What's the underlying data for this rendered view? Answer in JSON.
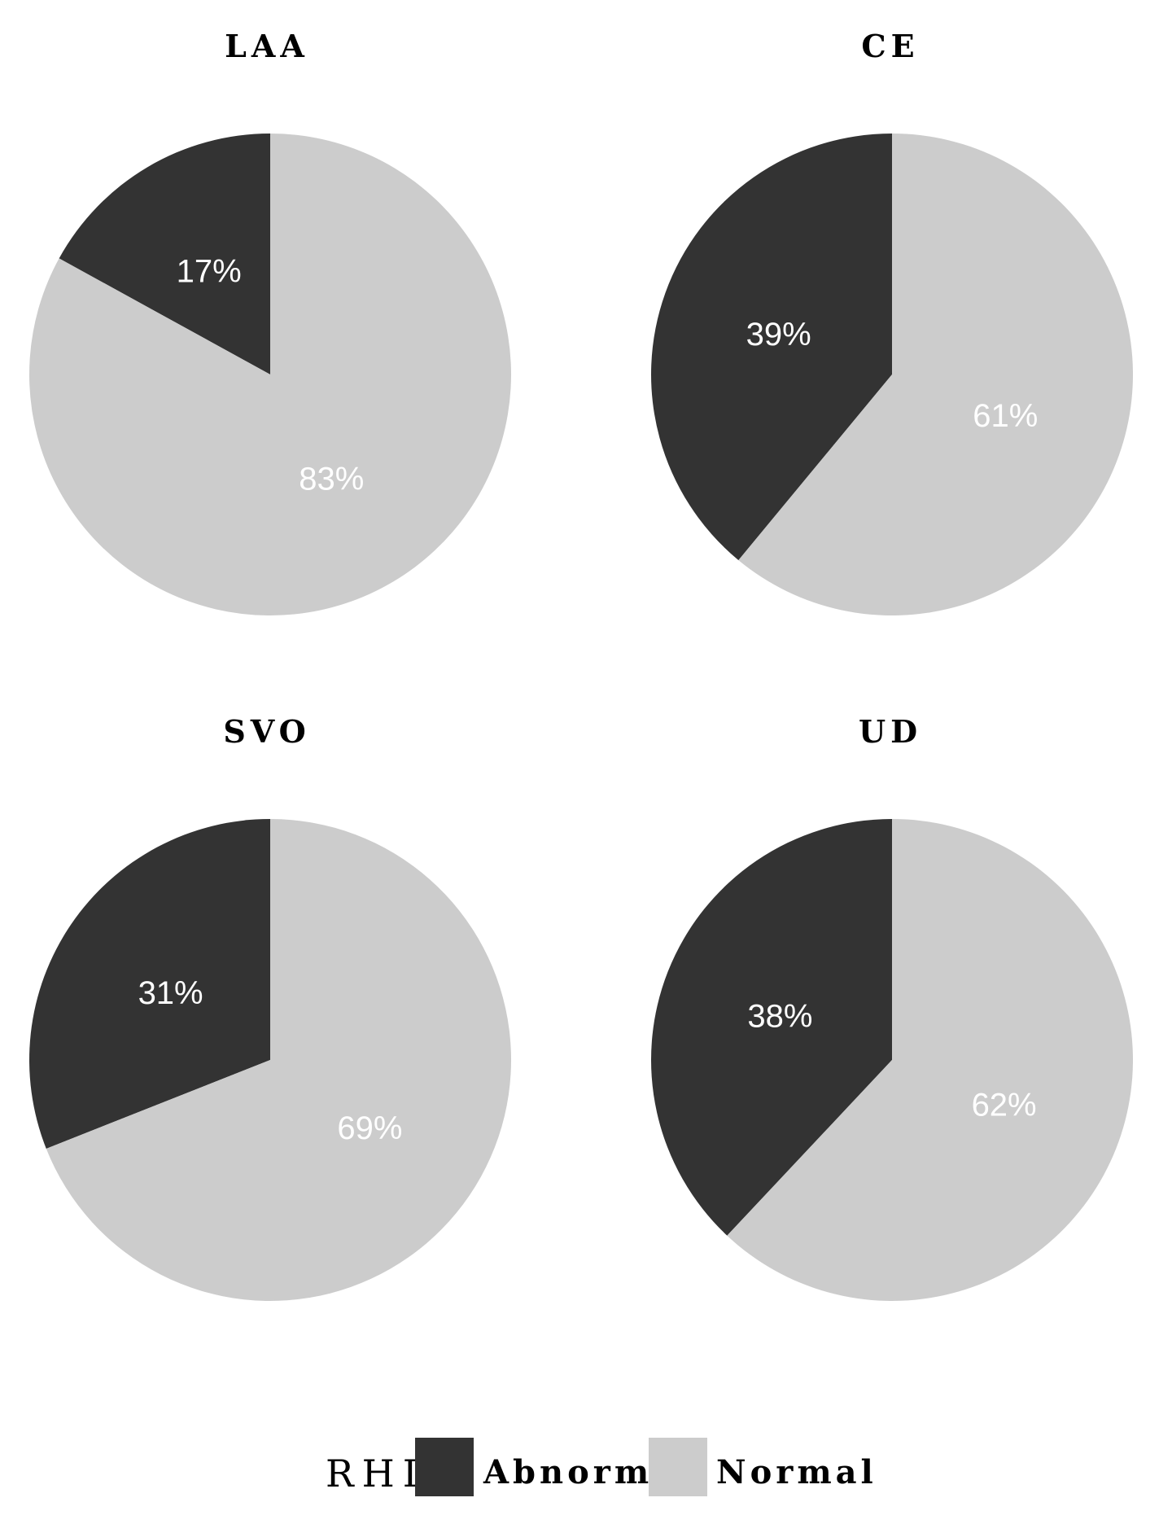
{
  "chart_data": [
    {
      "type": "pie",
      "title": "LAA",
      "categories": [
        "Abnormal",
        "Normal"
      ],
      "values": [
        17,
        83
      ],
      "labels": [
        "17%",
        "83%"
      ],
      "colors": [
        "#333333",
        "#cccccc"
      ]
    },
    {
      "type": "pie",
      "title": "CE",
      "categories": [
        "Abnormal",
        "Normal"
      ],
      "values": [
        39,
        61
      ],
      "labels": [
        "39%",
        "61%"
      ],
      "colors": [
        "#333333",
        "#cccccc"
      ]
    },
    {
      "type": "pie",
      "title": "SVO",
      "categories": [
        "Abnormal",
        "Normal"
      ],
      "values": [
        31,
        69
      ],
      "labels": [
        "31%",
        "69%"
      ],
      "colors": [
        "#333333",
        "#cccccc"
      ]
    },
    {
      "type": "pie",
      "title": "UD",
      "categories": [
        "Abnormal",
        "Normal"
      ],
      "values": [
        38,
        62
      ],
      "labels": [
        "38%",
        "62%"
      ],
      "colors": [
        "#333333",
        "#cccccc"
      ]
    }
  ],
  "legend": {
    "title": "RHI",
    "items": [
      {
        "label": "Abnormal",
        "color": "#333333"
      },
      {
        "label": "Normal",
        "color": "#cccccc"
      }
    ]
  }
}
